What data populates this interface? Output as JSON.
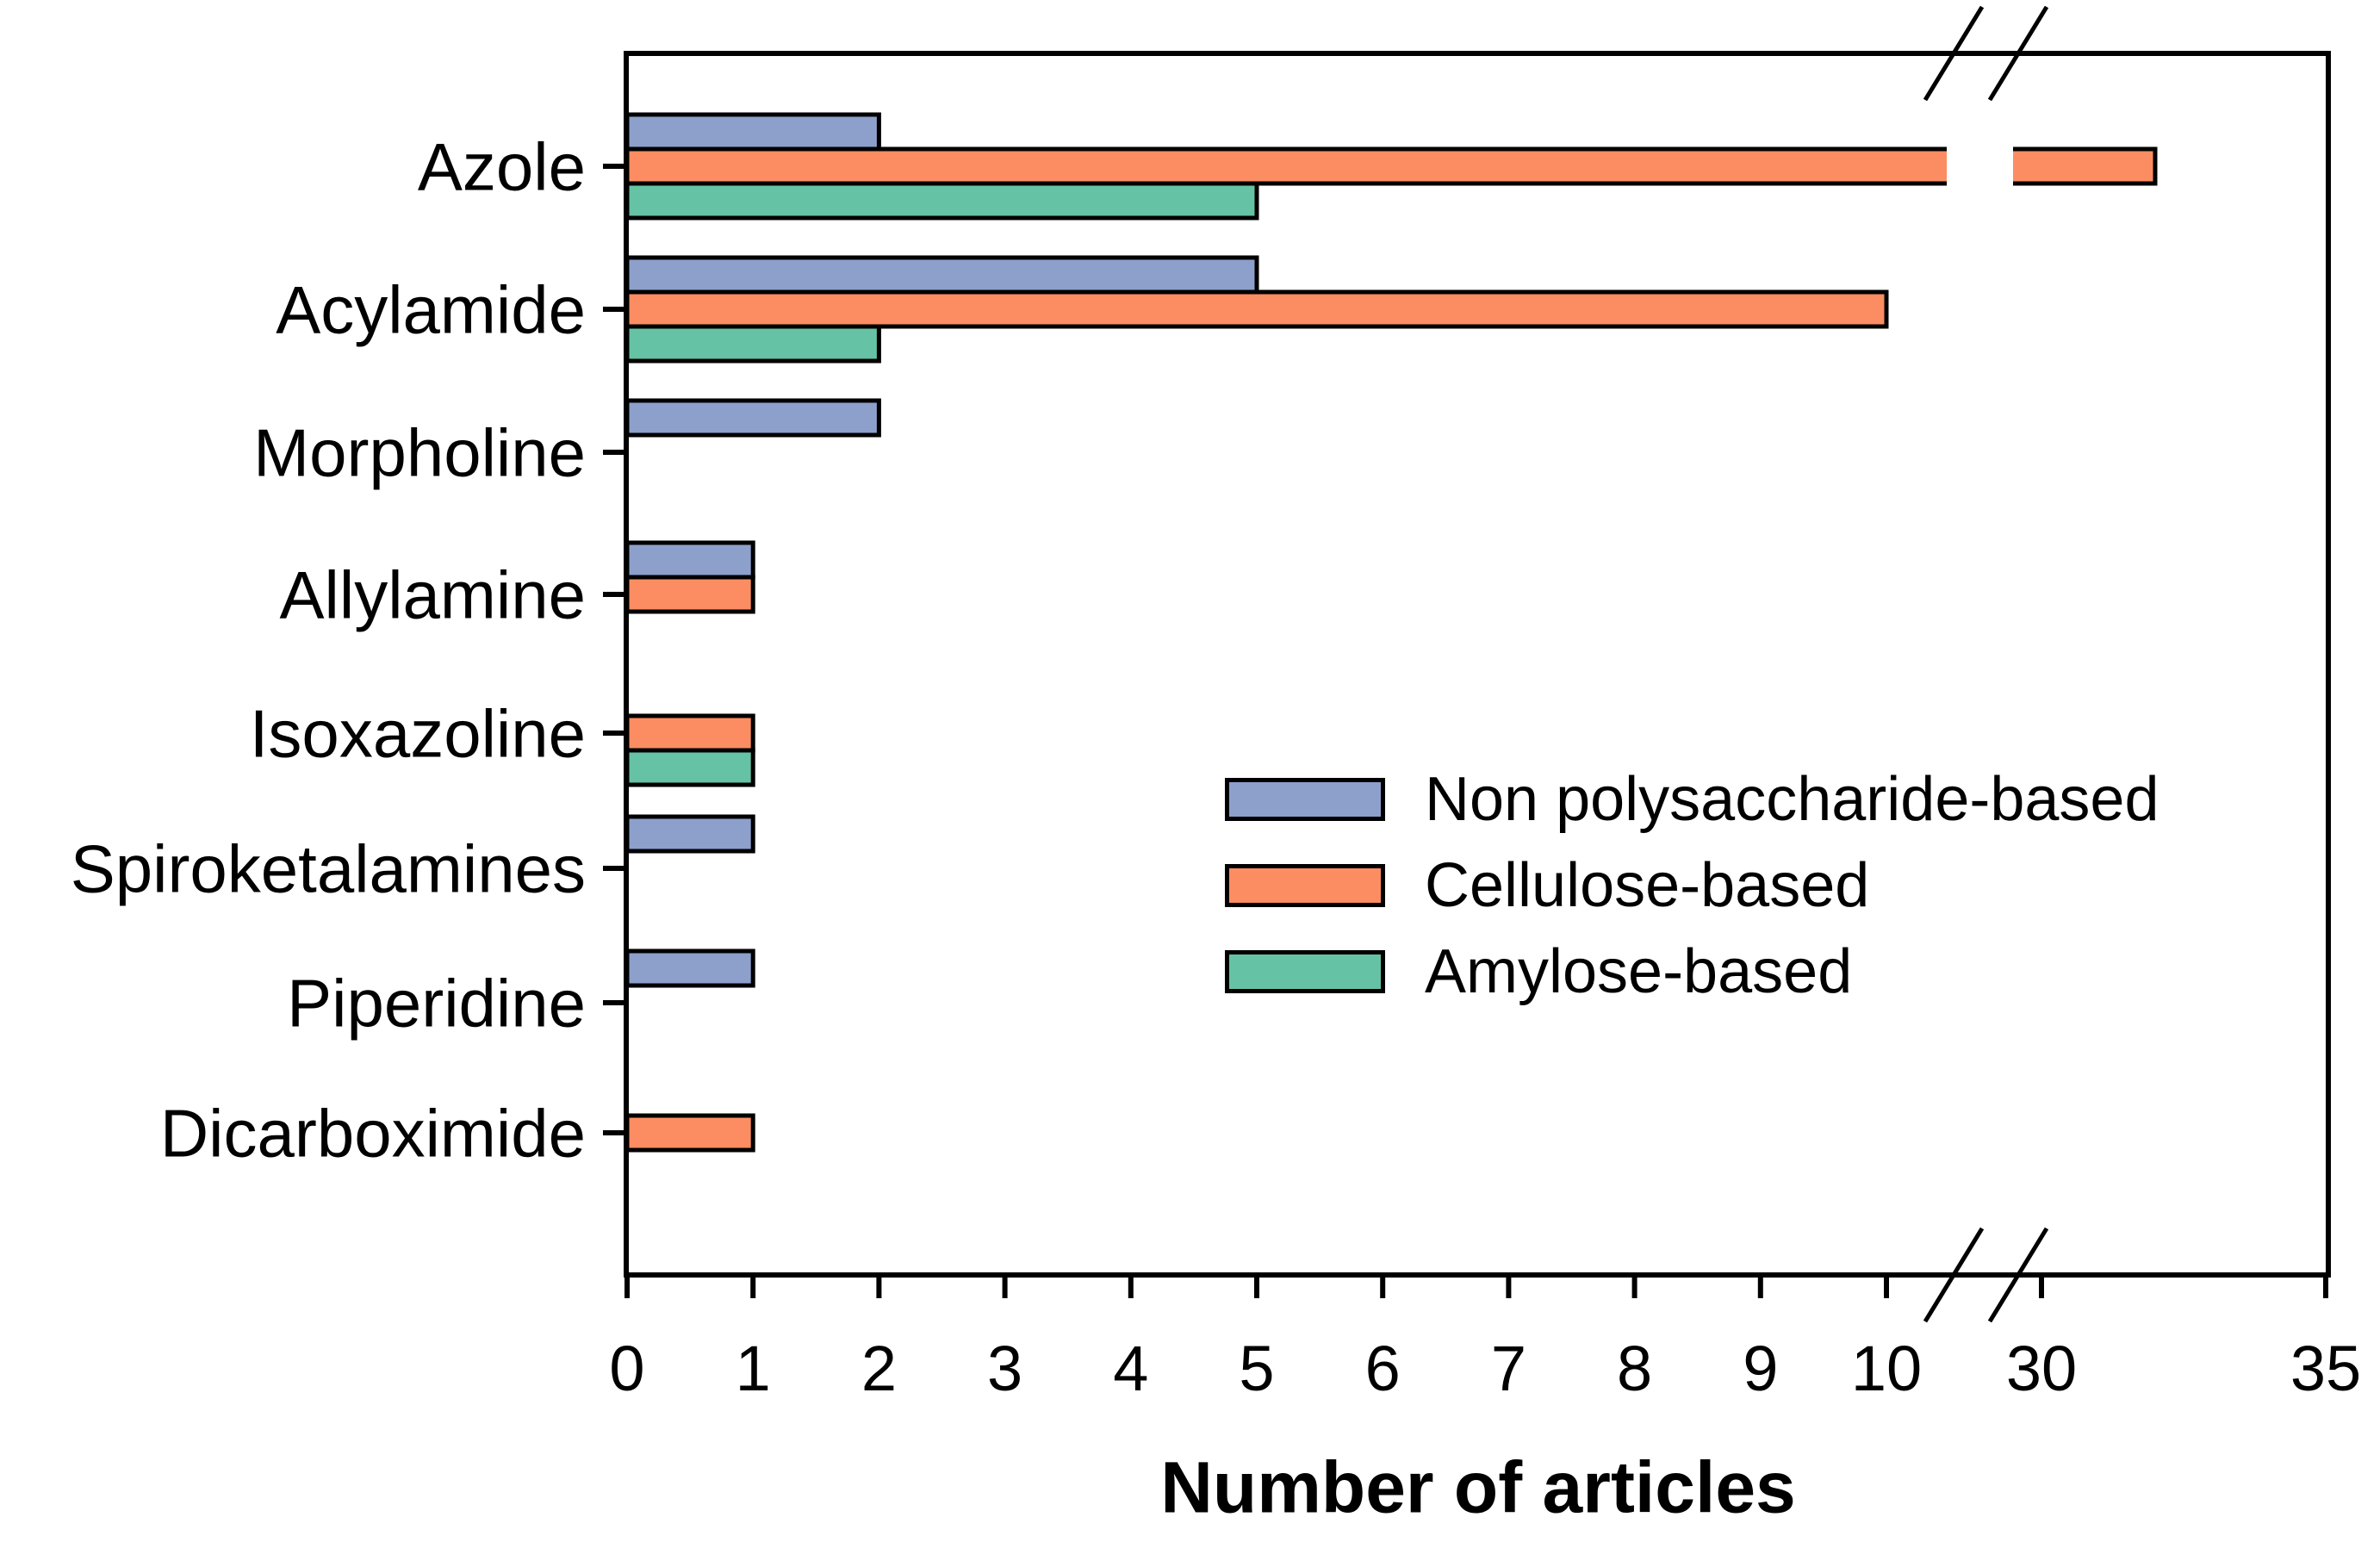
{
  "figure": {
    "background": "#ffffff",
    "ink": "#000000"
  },
  "chart_data": {
    "type": "bar",
    "orientation": "horizontal",
    "title": "",
    "xlabel": "Number of articles",
    "ylabel": "",
    "categories": [
      "Azole",
      "Acylamide",
      "Morpholine",
      "Allylamine",
      "Isoxazoline",
      "Spiroketalamines",
      "Piperidine",
      "Dicarboximide"
    ],
    "series": [
      {
        "name": "Non polysaccharide-based",
        "color": "#8DA0CB",
        "values": [
          2,
          5,
          2,
          1,
          0,
          1,
          1,
          0
        ]
      },
      {
        "name": "Cellulose-based",
        "color": "#FC8D62",
        "values": [
          32,
          10,
          0,
          1,
          1,
          0,
          0,
          1
        ]
      },
      {
        "name": "Amylose-based",
        "color": "#66C2A5",
        "values": [
          5,
          2,
          0,
          0,
          1,
          0,
          0,
          0
        ]
      }
    ],
    "x_axis": {
      "ticks_segment1": [
        0,
        1,
        2,
        3,
        4,
        5,
        6,
        7,
        8,
        9,
        10
      ],
      "ticks_segment2": [
        30,
        35
      ],
      "break_between": [
        10,
        30
      ],
      "range": [
        0,
        35
      ]
    },
    "grid": false,
    "legend": {
      "position": "middle-right"
    }
  }
}
